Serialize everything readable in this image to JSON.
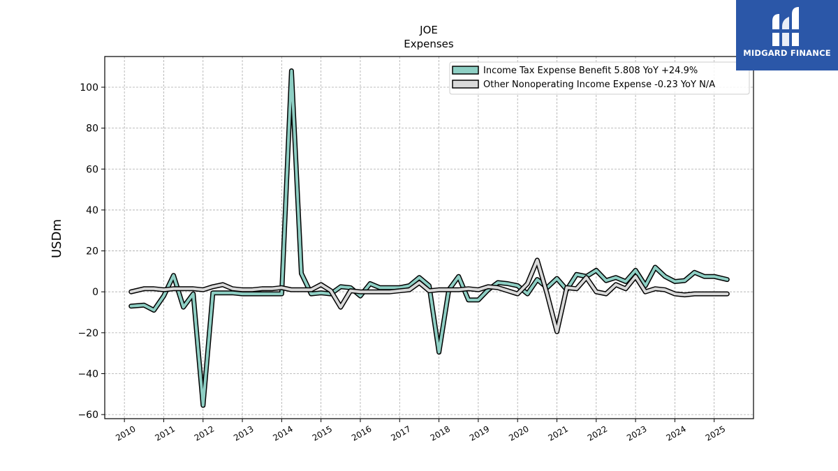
{
  "chart_data": {
    "type": "line",
    "title": "JOE",
    "subtitle": "Expenses",
    "xlabel": "",
    "ylabel": "USDm",
    "xlim": [
      2009.5,
      2026.0
    ],
    "ylim": [
      -62,
      115
    ],
    "yticks": [
      100,
      80,
      60,
      40,
      20,
      0,
      -20,
      -40,
      -60
    ],
    "ytick_labels": [
      "100",
      "80",
      "60",
      "40",
      "20",
      "0",
      "−20",
      "−40",
      "−60"
    ],
    "xticks": [
      2010,
      2011,
      2012,
      2013,
      2014,
      2015,
      2016,
      2017,
      2018,
      2019,
      2020,
      2021,
      2022,
      2023,
      2024,
      2025
    ],
    "xtick_labels": [
      "2010",
      "2011",
      "2012",
      "2013",
      "2014",
      "2015",
      "2016",
      "2017",
      "2018",
      "2019",
      "2020",
      "2021",
      "2022",
      "2023",
      "2024",
      "2025"
    ],
    "grid": true,
    "legend_position": "top-right",
    "series": [
      {
        "name": "Income Tax Expense Benefit  5.808 YoY +24.9%",
        "color": "#8ecfc4",
        "x": [
          2010.17,
          2010.5,
          2010.75,
          2011.0,
          2011.25,
          2011.5,
          2011.75,
          2012.0,
          2012.25,
          2012.5,
          2012.75,
          2013.0,
          2013.25,
          2013.5,
          2013.75,
          2014.0,
          2014.25,
          2014.5,
          2014.75,
          2015.0,
          2015.25,
          2015.5,
          2015.75,
          2016.0,
          2016.25,
          2016.5,
          2016.75,
          2017.0,
          2017.25,
          2017.5,
          2017.75,
          2018.0,
          2018.25,
          2018.5,
          2018.75,
          2019.0,
          2019.25,
          2019.5,
          2019.75,
          2020.0,
          2020.25,
          2020.5,
          2020.75,
          2021.0,
          2021.25,
          2021.5,
          2021.75,
          2022.0,
          2022.25,
          2022.5,
          2022.75,
          2023.0,
          2023.25,
          2023.5,
          2023.75,
          2024.0,
          2024.25,
          2024.5,
          2024.75,
          2025.0,
          2025.33
        ],
        "values": [
          -7,
          -6.5,
          -9,
          -2,
          8,
          -7.5,
          -1,
          -55.5,
          -0.5,
          -0.5,
          -0.5,
          -1,
          -1,
          -1,
          -1,
          -1,
          108,
          9,
          -1,
          -0.5,
          -1,
          2.5,
          2,
          -2,
          4,
          2,
          2,
          2,
          3,
          7,
          3,
          -29.5,
          1,
          7.5,
          -4,
          -4,
          1,
          4.5,
          4,
          3,
          -1,
          6,
          2,
          6.5,
          1,
          8.5,
          7.5,
          10.5,
          5.5,
          7,
          5,
          10.5,
          3,
          12,
          7.5,
          5,
          5.5,
          9.5,
          7.5,
          7.5,
          6
        ]
      },
      {
        "name": "Other Nonoperating Income Expense  -0.23 YoY N/A",
        "color": "#d9d9d9",
        "x": [
          2010.17,
          2010.5,
          2010.75,
          2011.0,
          2011.25,
          2011.5,
          2011.75,
          2012.0,
          2012.25,
          2012.5,
          2012.75,
          2013.0,
          2013.25,
          2013.5,
          2013.75,
          2014.0,
          2014.25,
          2014.5,
          2014.75,
          2015.0,
          2015.25,
          2015.5,
          2015.75,
          2016.0,
          2016.25,
          2016.5,
          2016.75,
          2017.0,
          2017.25,
          2017.5,
          2017.75,
          2018.0,
          2018.25,
          2018.5,
          2018.75,
          2019.0,
          2019.25,
          2019.5,
          2019.75,
          2020.0,
          2020.25,
          2020.5,
          2020.75,
          2021.0,
          2021.25,
          2021.5,
          2021.75,
          2022.0,
          2022.25,
          2022.5,
          2022.75,
          2023.0,
          2023.25,
          2023.5,
          2023.75,
          2024.0,
          2024.25,
          2024.5,
          2024.75,
          2025.0,
          2025.33
        ],
        "values": [
          0,
          1.5,
          1.5,
          1,
          1.5,
          1.5,
          1.5,
          1,
          2.5,
          3.5,
          1.5,
          1,
          1,
          1.5,
          1.5,
          2,
          1,
          1,
          1,
          3.5,
          0.5,
          -7.5,
          0.5,
          0,
          0,
          0,
          0,
          0.5,
          1,
          4.5,
          0.5,
          1,
          1,
          1,
          1.5,
          1,
          2.5,
          2,
          0.5,
          -1,
          4,
          15.5,
          -1,
          -19.5,
          2,
          1.5,
          7,
          0,
          -1,
          3.5,
          1.5,
          7.5,
          0,
          1.5,
          1,
          -1,
          -1.5,
          -1,
          -1,
          -1,
          -1
        ]
      }
    ]
  },
  "logo": {
    "text": "MIDGARD FINANCE"
  }
}
